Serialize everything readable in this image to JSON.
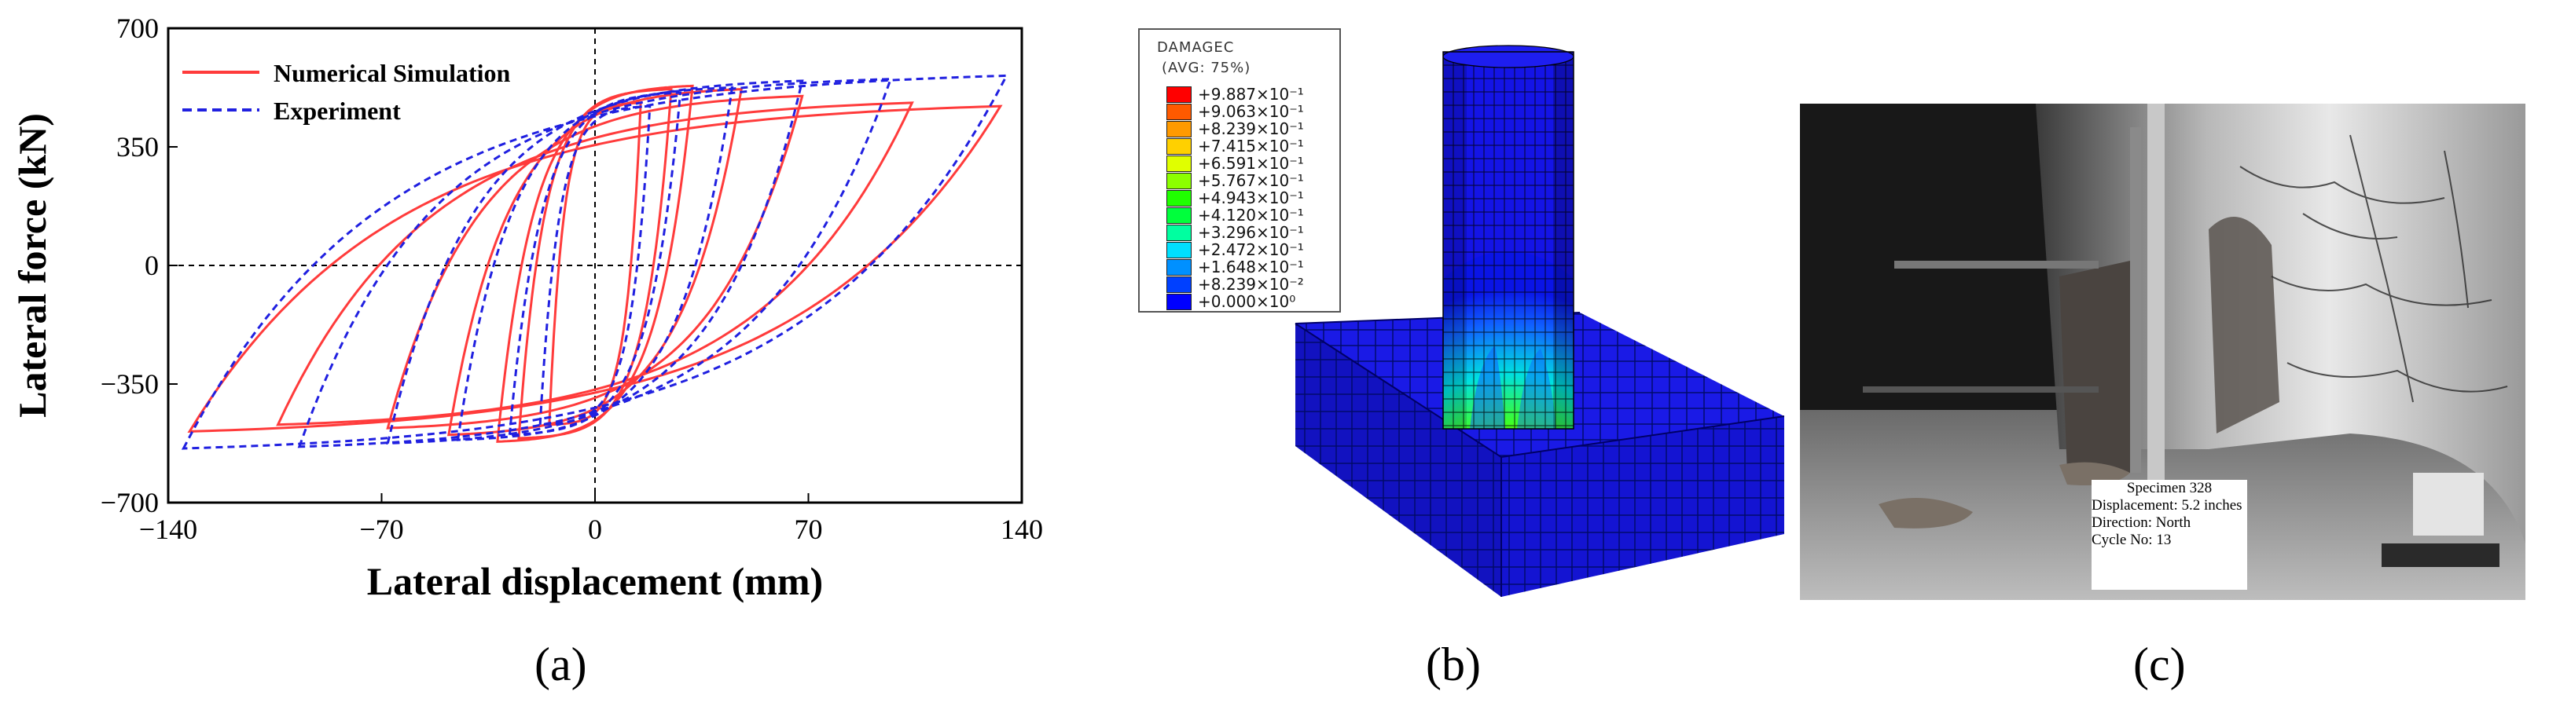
{
  "panels": {
    "a": {
      "label": "(a)"
    },
    "b": {
      "label": "(b)"
    },
    "c": {
      "label": "(c)"
    }
  },
  "chart_data": {
    "type": "line",
    "title": "",
    "xlabel": "Lateral displacement (mm)",
    "ylabel": "Lateral force (kN)",
    "xlim": [
      -140,
      140
    ],
    "ylim": [
      -700,
      700
    ],
    "xticks": [
      "-140",
      "-70",
      "0",
      "70",
      "140"
    ],
    "yticks": [
      "700",
      "350",
      "0",
      "-350",
      "-700"
    ],
    "grid": false,
    "legend_position": "top-left",
    "series": [
      {
        "name": "Numerical Simulation",
        "color": "#ff3b3b",
        "style": "solid",
        "loops": [
          {
            "amp": 15,
            "fmax": 480,
            "fmin": -470,
            "k": 6.5
          },
          {
            "amp": 25,
            "fmax": 520,
            "fmin": -510,
            "k": 6.0
          },
          {
            "amp": 32,
            "fmax": 530,
            "fmin": -520,
            "k": 5.5
          },
          {
            "amp": 48,
            "fmax": 520,
            "fmin": -500,
            "k": 5.0
          },
          {
            "amp": 68,
            "fmax": 500,
            "fmin": -480,
            "k": 4.6
          },
          {
            "amp": 104,
            "fmax": 480,
            "fmin": -470,
            "k": 4.2
          },
          {
            "amp": 133,
            "fmax": 470,
            "fmin": -490,
            "k": 4.0
          }
        ]
      },
      {
        "name": "Experiment",
        "color": "#2020e0",
        "style": "dashed",
        "loops": [
          {
            "amp": 18,
            "fmax": 470,
            "fmin": -470,
            "k": 6.0
          },
          {
            "amp": 28,
            "fmax": 510,
            "fmin": -500,
            "k": 5.5
          },
          {
            "amp": 45,
            "fmax": 525,
            "fmin": -515,
            "k": 5.2
          },
          {
            "amp": 68,
            "fmax": 545,
            "fmin": -525,
            "k": 4.8
          },
          {
            "amp": 97,
            "fmax": 550,
            "fmin": -535,
            "k": 4.5
          },
          {
            "amp": 135,
            "fmax": 560,
            "fmin": -540,
            "k": 4.2
          }
        ]
      }
    ]
  },
  "fea": {
    "variable": "DAMAGEC",
    "averaging": "(AVG: 75%)",
    "levels": [
      {
        "value": "+9.887×10⁻¹",
        "color": "#ff0000"
      },
      {
        "value": "+9.063×10⁻¹",
        "color": "#ff5a00"
      },
      {
        "value": "+8.239×10⁻¹",
        "color": "#ff9a00"
      },
      {
        "value": "+7.415×10⁻¹",
        "color": "#ffd000"
      },
      {
        "value": "+6.591×10⁻¹",
        "color": "#e0ff00"
      },
      {
        "value": "+5.767×10⁻¹",
        "color": "#8cff00"
      },
      {
        "value": "+4.943×10⁻¹",
        "color": "#20ff00"
      },
      {
        "value": "+4.120×10⁻¹",
        "color": "#00ff3c"
      },
      {
        "value": "+3.296×10⁻¹",
        "color": "#00ffa0"
      },
      {
        "value": "+2.472×10⁻¹",
        "color": "#00e0ff"
      },
      {
        "value": "+1.648×10⁻¹",
        "color": "#0090ff"
      },
      {
        "value": "+8.239×10⁻²",
        "color": "#0040ff"
      },
      {
        "value": "+0.000×10⁰",
        "color": "#0000ff"
      }
    ]
  },
  "photo": {
    "caption_lines": [
      "Specimen 328",
      "Displacement: 5.2 inches",
      "Direction:  North",
      "Cycle No: 13"
    ]
  }
}
